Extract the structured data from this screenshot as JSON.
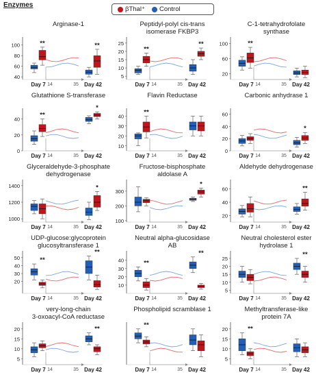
{
  "title": "Enzymes",
  "legend": [
    {
      "label": "βThal⁺",
      "color": "#c0161b"
    },
    {
      "label": "Control",
      "color": "#2060b8"
    }
  ],
  "colors": {
    "bthal": "#c0161b",
    "control": "#2060b8",
    "bthal_line": "#e46a6a",
    "control_line": "#7aa6de"
  },
  "chart_data": [
    {
      "type": "box",
      "title": "Arginase-1",
      "categories": [
        "Day 7",
        "Day 42"
      ],
      "yticks": [
        40,
        60,
        80,
        100
      ],
      "ylim": [
        35,
        110
      ],
      "inset_xticks": [
        "14",
        "35"
      ],
      "significance": [
        "**",
        "**"
      ],
      "series": [
        {
          "name": "Control",
          "values": [
            {
              "min": 48,
              "q1": 55,
              "median": 58,
              "q3": 62,
              "max": 66
            },
            {
              "min": 40,
              "q1": 45,
              "median": 49,
              "q3": 53,
              "max": 58
            }
          ]
        },
        {
          "name": "βThal⁺",
          "values": [
            {
              "min": 62,
              "q1": 72,
              "median": 78,
              "q3": 90,
              "max": 96
            },
            {
              "min": 45,
              "q1": 58,
              "median": 70,
              "q3": 80,
              "max": 92
            }
          ]
        }
      ]
    },
    {
      "type": "box",
      "title": "Peptidyl-polyl cis-trans isomerase FKBP3",
      "categories": [
        "Day 7",
        "Day 42"
      ],
      "yticks": [
        5,
        10,
        15,
        20,
        25
      ],
      "ylim": [
        3,
        27
      ],
      "inset_xticks": [
        "14",
        "35"
      ],
      "significance": [
        "**",
        "**"
      ],
      "series": [
        {
          "name": "Control",
          "values": [
            {
              "min": 6,
              "q1": 7,
              "median": 8.5,
              "q3": 9.5,
              "max": 11
            },
            {
              "min": 6,
              "q1": 8,
              "median": 10,
              "q3": 12,
              "max": 15
            }
          ]
        },
        {
          "name": "βThal⁺",
          "values": [
            {
              "min": 11,
              "q1": 13,
              "median": 15,
              "q3": 17,
              "max": 19
            },
            {
              "min": 15,
              "q1": 17,
              "median": 18.5,
              "q3": 20,
              "max": 22
            }
          ]
        }
      ]
    },
    {
      "type": "box",
      "title": "C-1-tetrahydrofolate synthase",
      "categories": [
        "Day 7",
        "Day 42"
      ],
      "yticks": [
        20,
        60,
        100
      ],
      "ylim": [
        5,
        110
      ],
      "inset_xticks": [
        "14",
        "35"
      ],
      "significance": [
        "**",
        ""
      ],
      "series": [
        {
          "name": "Control",
          "values": [
            {
              "min": 30,
              "q1": 40,
              "median": 48,
              "q3": 56,
              "max": 65
            },
            {
              "min": 12,
              "q1": 18,
              "median": 22,
              "q3": 28,
              "max": 35
            }
          ]
        },
        {
          "name": "βThal⁺",
          "values": [
            {
              "min": 35,
              "q1": 50,
              "median": 62,
              "q3": 75,
              "max": 90
            },
            {
              "min": 10,
              "q1": 18,
              "median": 24,
              "q3": 30,
              "max": 40
            }
          ]
        }
      ]
    },
    {
      "type": "box",
      "title": "Glutathione S-transferase",
      "categories": [
        "Day 7",
        "Day 42"
      ],
      "yticks": [
        0,
        20,
        40
      ],
      "ylim": [
        0,
        50
      ],
      "inset_xticks": [
        "14",
        "35"
      ],
      "significance": [
        "**",
        "*"
      ],
      "series": [
        {
          "name": "Control",
          "values": [
            {
              "min": 8,
              "q1": 12,
              "median": 15,
              "q3": 19,
              "max": 25
            },
            {
              "min": 34,
              "q1": 37,
              "median": 39,
              "q3": 42,
              "max": 44
            }
          ]
        },
        {
          "name": "βThal⁺",
          "values": [
            {
              "min": 18,
              "q1": 24,
              "median": 28,
              "q3": 33,
              "max": 40
            },
            {
              "min": 40,
              "q1": 43,
              "median": 45,
              "q3": 47,
              "max": 49
            }
          ]
        }
      ]
    },
    {
      "type": "box",
      "title": "Flavin Reductase",
      "categories": [
        "Day 7",
        "Day 42"
      ],
      "yticks": [
        10,
        20,
        30,
        40
      ],
      "ylim": [
        5,
        45
      ],
      "inset_xticks": [
        "14",
        "35"
      ],
      "significance": [
        "**",
        ""
      ],
      "series": [
        {
          "name": "Control",
          "values": [
            {
              "min": 10,
              "q1": 17,
              "median": 20,
              "q3": 22,
              "max": 23
            },
            {
              "min": 20,
              "q1": 26,
              "median": 30,
              "q3": 34,
              "max": 40
            }
          ]
        },
        {
          "name": "βThal⁺",
          "values": [
            {
              "min": 18,
              "q1": 24,
              "median": 29,
              "q3": 34,
              "max": 40
            },
            {
              "min": 20,
              "q1": 25,
              "median": 30,
              "q3": 34,
              "max": 40
            }
          ]
        }
      ]
    },
    {
      "type": "box",
      "title": "Carbonic anhydrase 1",
      "categories": [
        "Day 7",
        "Day 42"
      ],
      "yticks": [
        0,
        20,
        40,
        60
      ],
      "ylim": [
        0,
        65
      ],
      "inset_xticks": [
        "14",
        "35"
      ],
      "significance": [
        "",
        "*"
      ],
      "series": [
        {
          "name": "Control",
          "values": [
            {
              "min": 8,
              "q1": 12,
              "median": 16,
              "q3": 20,
              "max": 25
            },
            {
              "min": 6,
              "q1": 10,
              "median": 13,
              "q3": 17,
              "max": 22
            }
          ]
        },
        {
          "name": "βThal⁺",
          "values": [
            {
              "min": 12,
              "q1": 17,
              "median": 20,
              "q3": 23,
              "max": 28
            },
            {
              "min": 12,
              "q1": 17,
              "median": 21,
              "q3": 25,
              "max": 30
            }
          ]
        }
      ]
    },
    {
      "type": "box",
      "title": "Glyceraldehyde-3-phosphate dehydrogenase",
      "categories": [
        "Day 7",
        "Day 42"
      ],
      "yticks": [
        1000,
        1200,
        1400
      ],
      "ylim": [
        960,
        1440
      ],
      "inset_xticks": [
        "14",
        "35"
      ],
      "significance": [
        "",
        "*"
      ],
      "series": [
        {
          "name": "Control",
          "values": [
            {
              "min": 1060,
              "q1": 1100,
              "median": 1150,
              "q3": 1180,
              "max": 1220
            },
            {
              "min": 990,
              "q1": 1040,
              "median": 1080,
              "q3": 1130,
              "max": 1200
            }
          ]
        },
        {
          "name": "βThal⁺",
          "values": [
            {
              "min": 1000,
              "q1": 1060,
              "median": 1120,
              "q3": 1180,
              "max": 1240
            },
            {
              "min": 1100,
              "q1": 1140,
              "median": 1200,
              "q3": 1280,
              "max": 1330
            }
          ]
        }
      ]
    },
    {
      "type": "box",
      "title": "Fructose-bisphosphate aldolase A",
      "categories": [
        "Day 7",
        "Day 42"
      ],
      "yticks": [
        100,
        200,
        300
      ],
      "ylim": [
        90,
        360
      ],
      "inset_xticks": [
        "14",
        "35"
      ],
      "significance": [
        "",
        "*"
      ],
      "series": [
        {
          "name": "Control",
          "values": [
            {
              "min": 160,
              "q1": 200,
              "median": 225,
              "q3": 260,
              "max": 330
            },
            {
              "min": 230,
              "q1": 238,
              "median": 245,
              "q3": 252,
              "max": 260
            }
          ]
        },
        {
          "name": "βThal⁺",
          "values": [
            {
              "min": 200,
              "q1": 222,
              "median": 235,
              "q3": 245,
              "max": 255
            },
            {
              "min": 260,
              "q1": 280,
              "median": 295,
              "q3": 308,
              "max": 320
            }
          ]
        }
      ]
    },
    {
      "type": "box",
      "title": "Aldehyde dehydrogenase",
      "categories": [
        "Day 7",
        "Day 42"
      ],
      "yticks": [
        20,
        40,
        60
      ],
      "ylim": [
        10,
        70
      ],
      "inset_xticks": [
        "14",
        "35"
      ],
      "significance": [
        "",
        "**"
      ],
      "series": [
        {
          "name": "Control",
          "values": [
            {
              "min": 18,
              "q1": 22,
              "median": 26,
              "q3": 30,
              "max": 35
            },
            {
              "min": 22,
              "q1": 26,
              "median": 29,
              "q3": 33,
              "max": 38
            }
          ]
        },
        {
          "name": "βThal⁺",
          "values": [
            {
              "min": 18,
              "q1": 25,
              "median": 30,
              "q3": 38,
              "max": 48
            },
            {
              "min": 28,
              "q1": 34,
              "median": 38,
              "q3": 45,
              "max": 55
            }
          ]
        }
      ]
    },
    {
      "type": "box",
      "title": "UDP-glucose:glycoprotein glucosyltransferase 1",
      "categories": [
        "Day 7",
        "Day 42"
      ],
      "yticks": [
        20,
        30,
        40,
        50
      ],
      "ylim": [
        5,
        55
      ],
      "inset_xticks": [
        "14",
        "35"
      ],
      "significance": [
        "**",
        "**"
      ],
      "series": [
        {
          "name": "Control",
          "values": [
            {
              "min": 22,
              "q1": 28,
              "median": 32,
              "q3": 36,
              "max": 42
            },
            {
              "min": 22,
              "q1": 30,
              "median": 38,
              "q3": 46,
              "max": 52
            }
          ]
        },
        {
          "name": "βThal⁺",
          "values": [
            {
              "min": 12,
              "q1": 15,
              "median": 17,
              "q3": 19,
              "max": 22
            },
            {
              "min": 10,
              "q1": 13,
              "median": 16,
              "q3": 21,
              "max": 28
            }
          ]
        }
      ]
    },
    {
      "type": "box",
      "title": "Neutral alpha-glucosidase AB",
      "categories": [
        "Day 7",
        "Day 42"
      ],
      "yticks": [
        10,
        20,
        30,
        40
      ],
      "ylim": [
        0,
        48
      ],
      "inset_xticks": [
        "14",
        "35"
      ],
      "significance": [
        "**",
        "**"
      ],
      "series": [
        {
          "name": "Control",
          "values": [
            {
              "min": 15,
              "q1": 20,
              "median": 24,
              "q3": 28,
              "max": 32
            },
            {
              "min": 25,
              "q1": 30,
              "median": 34,
              "q3": 38,
              "max": 44
            }
          ]
        },
        {
          "name": "βThal⁺",
          "values": [
            {
              "min": 4,
              "q1": 7,
              "median": 10,
              "q3": 14,
              "max": 18
            },
            {
              "min": 5,
              "q1": 7,
              "median": 8.5,
              "q3": 10,
              "max": 12
            }
          ]
        }
      ]
    },
    {
      "type": "box",
      "title": "Neutral cholesterol ester hydrolase 1",
      "categories": [
        "Day 7",
        "Day 42"
      ],
      "yticks": [
        5,
        10,
        15,
        20,
        25
      ],
      "ylim": [
        3,
        28
      ],
      "inset_xticks": [
        "14",
        "35"
      ],
      "significance": [
        "",
        "**"
      ],
      "series": [
        {
          "name": "Control",
          "values": [
            {
              "min": 10,
              "q1": 13,
              "median": 15,
              "q3": 17,
              "max": 20
            },
            {
              "min": 15,
              "q1": 18,
              "median": 20,
              "q3": 22,
              "max": 25
            }
          ]
        },
        {
          "name": "βThal⁺",
          "values": [
            {
              "min": 9,
              "q1": 11,
              "median": 13,
              "q3": 15,
              "max": 18
            },
            {
              "min": 10,
              "q1": 13,
              "median": 15,
              "q3": 17,
              "max": 20
            }
          ]
        }
      ]
    },
    {
      "type": "box",
      "title": "very-long-chain 3-oxoacyl-CoA reductase",
      "categories": [
        "Day 7",
        "Day 42"
      ],
      "yticks": [
        5,
        10,
        15,
        20
      ],
      "ylim": [
        2,
        22
      ],
      "inset_xticks": [
        "14",
        "35"
      ],
      "significance": [
        "",
        "**"
      ],
      "series": [
        {
          "name": "Control",
          "values": [
            {
              "min": 6,
              "q1": 8,
              "median": 9.5,
              "q3": 11,
              "max": 13
            },
            {
              "min": 12,
              "q1": 13.5,
              "median": 15,
              "q3": 16.5,
              "max": 18
            }
          ]
        },
        {
          "name": "βThal⁺",
          "values": [
            {
              "min": 9,
              "q1": 10.5,
              "median": 11.5,
              "q3": 12.5,
              "max": 14
            },
            {
              "min": 7,
              "q1": 8.5,
              "median": 10,
              "q3": 11,
              "max": 12
            }
          ]
        }
      ]
    },
    {
      "type": "box",
      "title": "Phospholipid scramblase 1",
      "categories": [
        "Day 7",
        "Day 42"
      ],
      "yticks": [],
      "ylim": [
        0,
        10
      ],
      "inset_xticks": [
        "14",
        "35"
      ],
      "significance": [
        "**",
        ""
      ],
      "series": [
        {
          "name": "Control",
          "values": [
            {
              "min": 5.5,
              "q1": 6.5,
              "median": 7.2,
              "q3": 8,
              "max": 9
            },
            {
              "min": 3.5,
              "q1": 5,
              "median": 6.2,
              "q3": 7.5,
              "max": 9
            }
          ]
        },
        {
          "name": "βThal⁺",
          "values": [
            {
              "min": 4.5,
              "q1": 5.2,
              "median": 5.7,
              "q3": 6.2,
              "max": 7
            },
            {
              "min": 2,
              "q1": 3.5,
              "median": 5,
              "q3": 6,
              "max": 7.5
            }
          ]
        }
      ]
    },
    {
      "type": "box",
      "title": "Methyltransferase-like protein 7A",
      "categories": [
        "Day 7",
        "Day 42"
      ],
      "yticks": [
        5,
        10,
        15,
        20
      ],
      "ylim": [
        2,
        22
      ],
      "inset_xticks": [
        "14",
        "35"
      ],
      "significance": [
        "**",
        ""
      ],
      "series": [
        {
          "name": "Control",
          "values": [
            {
              "min": 7,
              "q1": 9,
              "median": 12,
              "q3": 15,
              "max": 18
            },
            {
              "min": 6,
              "q1": 8.5,
              "median": 10.5,
              "q3": 12.5,
              "max": 15
            }
          ]
        },
        {
          "name": "βThal⁺",
          "values": [
            {
              "min": 5,
              "q1": 6.5,
              "median": 7.5,
              "q3": 8.5,
              "max": 10
            },
            {
              "min": 6,
              "q1": 8,
              "median": 9.5,
              "q3": 11,
              "max": 13
            }
          ]
        }
      ]
    }
  ]
}
